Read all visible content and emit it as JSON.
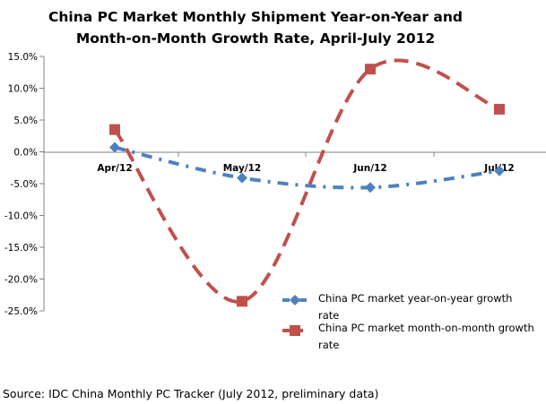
{
  "chart_data": {
    "type": "line",
    "title_lines": [
      "China PC Market Monthly Shipment Year-on-Year and",
      "Month-on-Month Growth Rate, April-July 2012"
    ],
    "categories": [
      "Apr/12",
      "May/12",
      "Jun/12",
      "Jul/12"
    ],
    "y_ticks": [
      "15.0%",
      "10.0%",
      "5.0%",
      "0.0%",
      "-5.0%",
      "-10.0%",
      "-15.0%",
      "-20.0%",
      "-25.0%"
    ],
    "ylim": [
      -25,
      15
    ],
    "series": [
      {
        "name_lines": [
          "China PC market year-on-year growth",
          "rate"
        ],
        "values": [
          0.7,
          -4.1,
          -5.6,
          -3.0
        ],
        "color": "#4F81BD",
        "marker": "diamond",
        "line_style": "dash-dot"
      },
      {
        "name_lines": [
          "China PC market month-on-month growth",
          "rate"
        ],
        "values": [
          3.5,
          -23.5,
          13.0,
          6.7
        ],
        "color": "#C0504D",
        "marker": "square",
        "line_style": "dash"
      }
    ],
    "grid": false,
    "legend_position": "bottom-right",
    "source": "Source: IDC China Monthly PC Tracker (July 2012, preliminary data)"
  }
}
